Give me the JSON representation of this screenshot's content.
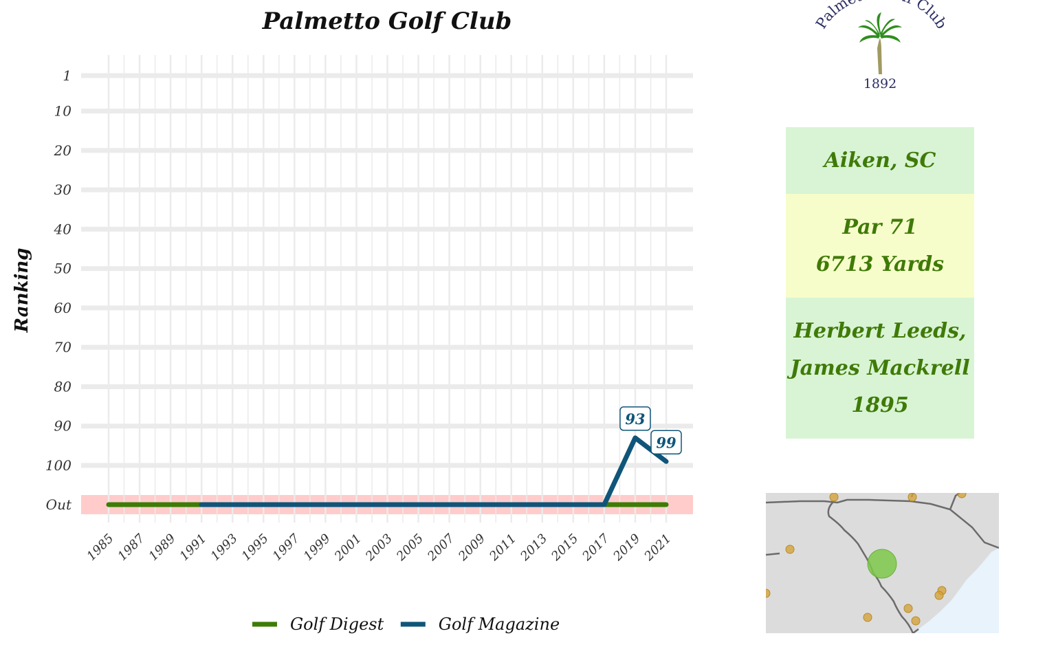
{
  "logo": {
    "name": "Palmetto Golf Club",
    "year": "1892",
    "icon": "palm-tree-icon"
  },
  "info": {
    "location": "Aiken, SC",
    "par": "Par 71",
    "yards": "6713 Yards",
    "architects": [
      "Herbert Leeds,",
      "James Mackrell"
    ],
    "year": "1895"
  },
  "map": {
    "region": "South Carolina",
    "highlight_color": "#7dc84a",
    "marker_color": "#d4a032",
    "water_color": "#e8f3fc",
    "land_color": "#dcdcdc"
  },
  "chart_data": {
    "type": "line",
    "title": "Palmetto Golf Club",
    "xlabel": "",
    "ylabel": "Ranking",
    "x": [
      1985,
      1986,
      1987,
      1988,
      1989,
      1990,
      1991,
      1992,
      1993,
      1994,
      1995,
      1996,
      1997,
      1998,
      1999,
      2000,
      2001,
      2002,
      2003,
      2004,
      2005,
      2006,
      2007,
      2008,
      2009,
      2010,
      2011,
      2012,
      2013,
      2014,
      2015,
      2016,
      2017,
      2018,
      2019,
      2020,
      2021
    ],
    "x_ticks": [
      "1985",
      "1987",
      "1989",
      "1991",
      "1993",
      "1995",
      "1997",
      "1999",
      "2001",
      "2003",
      "2005",
      "2007",
      "2009",
      "2011",
      "2013",
      "2015",
      "2017",
      "2019",
      "2021"
    ],
    "y_ticks": [
      "1",
      "10",
      "20",
      "30",
      "40",
      "50",
      "60",
      "70",
      "80",
      "90",
      "100",
      "Out"
    ],
    "ylim": [
      1,
      100
    ],
    "y_reversed": true,
    "out_band": "Out",
    "out_band_color": "#ffcccb",
    "grid": true,
    "legend_position": "bottom",
    "series": [
      {
        "name": "Golf Digest",
        "color": "#3d7c06",
        "points": [
          {
            "x": 1985,
            "y": "Out"
          },
          {
            "x": 2021,
            "y": "Out"
          }
        ]
      },
      {
        "name": "Golf Magazine",
        "color": "#0f5579",
        "points": [
          {
            "x": 1991,
            "y": "Out"
          },
          {
            "x": 2017,
            "y": "Out"
          },
          {
            "x": 2019,
            "y": 93
          },
          {
            "x": 2021,
            "y": 99
          }
        ]
      }
    ],
    "data_labels": [
      {
        "series": "Golf Magazine",
        "x": 2019,
        "y": 93,
        "text": "93"
      },
      {
        "series": "Golf Magazine",
        "x": 2021,
        "y": 99,
        "text": "99"
      }
    ]
  }
}
